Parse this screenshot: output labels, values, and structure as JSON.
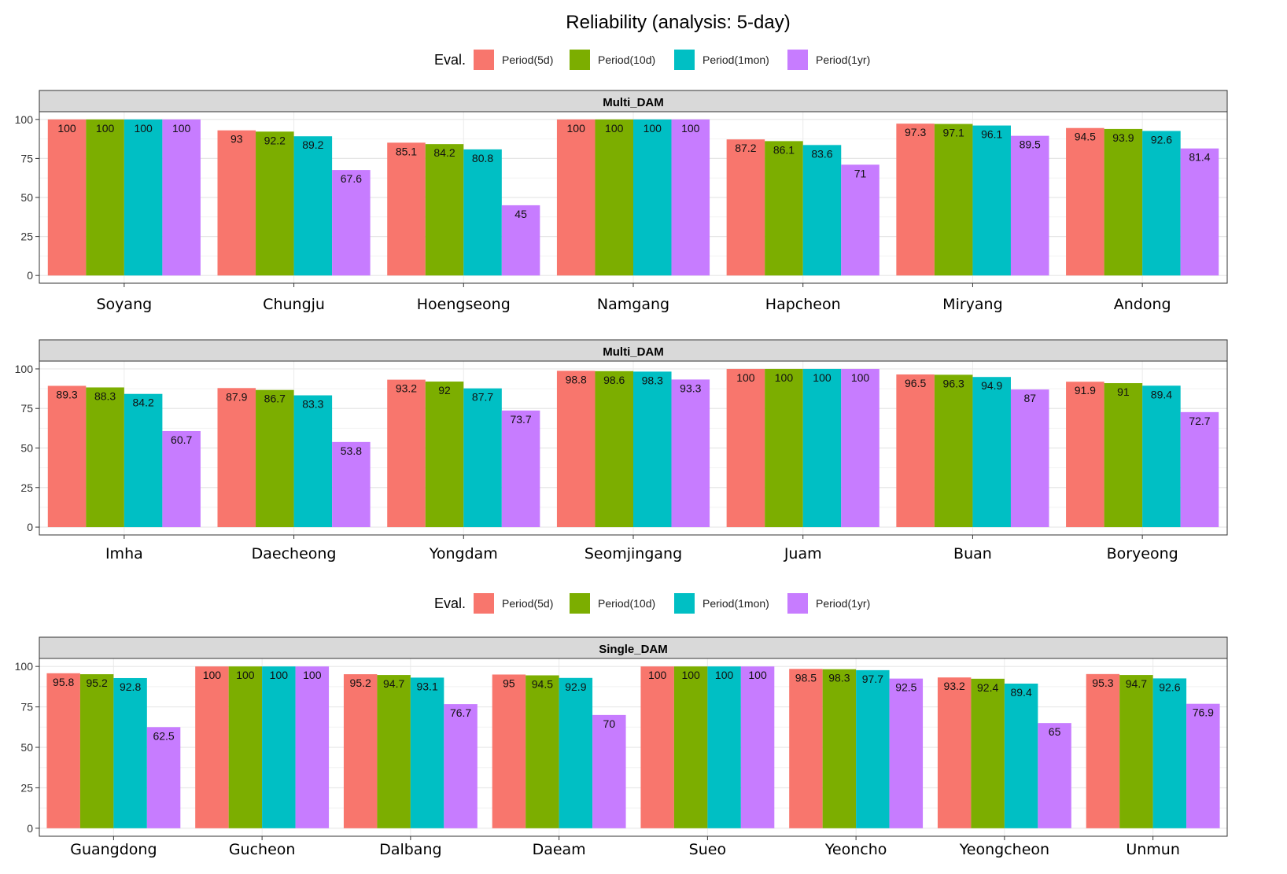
{
  "chart_data": {
    "type": "bar",
    "title": "Reliability (analysis: 5-day)",
    "legend": {
      "title": "Eval.",
      "entries": [
        "Period(5d)",
        "Period(10d)",
        "Period(1mon)",
        "Period(1yr)"
      ],
      "colors": [
        "#F8766D",
        "#7CAE00",
        "#00BFC4",
        "#C77CFF"
      ]
    },
    "ylim": [
      0,
      100
    ],
    "yticks": [
      0,
      25,
      50,
      75,
      100
    ],
    "grid": true,
    "panels": [
      {
        "strip": "Multi_DAM",
        "categories": [
          "Soyang",
          "Chungju",
          "Hoengseong",
          "Namgang",
          "Hapcheon",
          "Miryang",
          "Andong"
        ],
        "series": [
          {
            "name": "Period(5d)",
            "values": [
              100,
              93,
              85.1,
              100,
              87.2,
              97.3,
              94.5
            ]
          },
          {
            "name": "Period(10d)",
            "values": [
              100,
              92.2,
              84.2,
              100,
              86.1,
              97.1,
              93.9
            ]
          },
          {
            "name": "Period(1mon)",
            "values": [
              100,
              89.2,
              80.8,
              100,
              83.6,
              96.1,
              92.6
            ]
          },
          {
            "name": "Period(1yr)",
            "values": [
              100,
              67.6,
              45,
              100,
              71,
              89.5,
              81.4
            ]
          }
        ]
      },
      {
        "strip": "Multi_DAM",
        "categories": [
          "Imha",
          "Daecheong",
          "Yongdam",
          "Seomjingang",
          "Juam",
          "Buan",
          "Boryeong"
        ],
        "series": [
          {
            "name": "Period(5d)",
            "values": [
              89.3,
              87.9,
              93.2,
              98.8,
              100,
              96.5,
              91.9
            ]
          },
          {
            "name": "Period(10d)",
            "values": [
              88.3,
              86.7,
              92,
              98.6,
              100,
              96.3,
              91
            ]
          },
          {
            "name": "Period(1mon)",
            "values": [
              84.2,
              83.3,
              87.7,
              98.3,
              100,
              94.9,
              89.4
            ]
          },
          {
            "name": "Period(1yr)",
            "values": [
              60.7,
              53.8,
              73.7,
              93.3,
              100,
              87,
              72.7
            ]
          }
        ]
      },
      {
        "strip": "Single_DAM",
        "categories": [
          "Guangdong",
          "Gucheon",
          "Dalbang",
          "Daeam",
          "Sueo",
          "Yeoncho",
          "Yeongcheon",
          "Unmun"
        ],
        "series": [
          {
            "name": "Period(5d)",
            "values": [
              95.8,
              100,
              95.2,
              95,
              100,
              98.5,
              93.2,
              95.3
            ]
          },
          {
            "name": "Period(10d)",
            "values": [
              95.2,
              100,
              94.7,
              94.5,
              100,
              98.3,
              92.4,
              94.7
            ]
          },
          {
            "name": "Period(1mon)",
            "values": [
              92.8,
              100,
              93.1,
              92.9,
              100,
              97.7,
              89.4,
              92.6
            ]
          },
          {
            "name": "Period(1yr)",
            "values": [
              62.5,
              100,
              76.7,
              70,
              100,
              92.5,
              65,
              76.9
            ]
          }
        ]
      }
    ]
  }
}
